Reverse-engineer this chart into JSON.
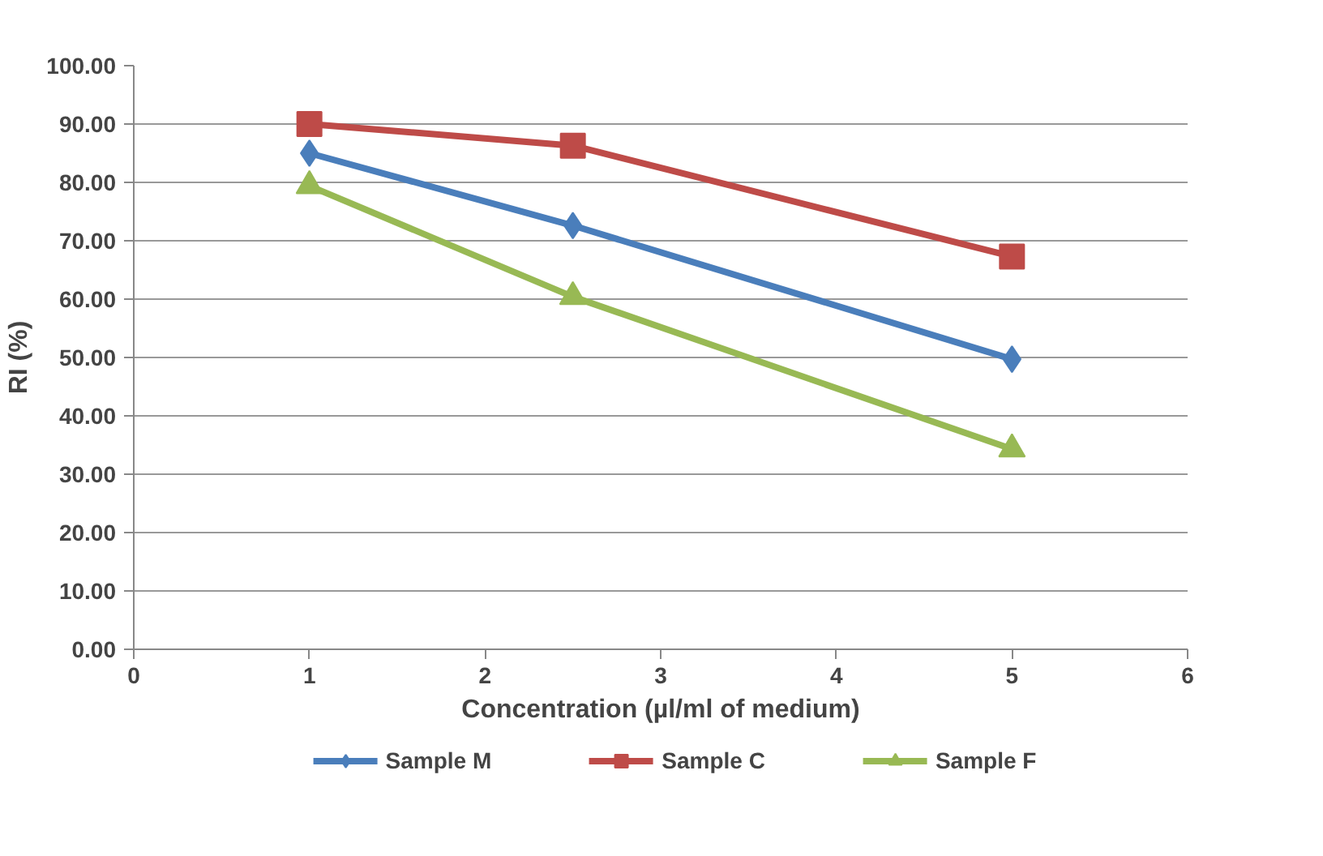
{
  "chart_data": {
    "type": "line",
    "xlabel": "Concentration (µl/ml of medium)",
    "ylabel": "RI (%)",
    "xlim": [
      0,
      6
    ],
    "xticks": [
      0,
      1,
      2,
      3,
      4,
      5,
      6
    ],
    "ylim": [
      0,
      100
    ],
    "yticks": [
      {
        "value": 0,
        "label": "0.00"
      },
      {
        "value": 10,
        "label": "10.00"
      },
      {
        "value": 20,
        "label": "20.00"
      },
      {
        "value": 30,
        "label": "30.00"
      },
      {
        "value": 40,
        "label": "40.00"
      },
      {
        "value": 50,
        "label": "50.00"
      },
      {
        "value": 60,
        "label": "60.00"
      },
      {
        "value": 70,
        "label": "70.00"
      },
      {
        "value": 80,
        "label": "80.00"
      },
      {
        "value": 90,
        "label": "90.00"
      },
      {
        "value": 100,
        "label": "100.00"
      }
    ],
    "grid": "y",
    "legend": "bottom",
    "line_style": "solid",
    "series": [
      {
        "name": "Sample M",
        "color": "#4a7ebb",
        "marker": "diamond",
        "x": [
          1,
          2.5,
          5
        ],
        "values": [
          85.0,
          72.6,
          49.7
        ]
      },
      {
        "name": "Sample C",
        "color": "#be4b48",
        "marker": "square",
        "x": [
          1,
          2.5,
          5
        ],
        "values": [
          90.0,
          86.3,
          67.3
        ]
      },
      {
        "name": "Sample F",
        "color": "#98b954",
        "marker": "triangle",
        "x": [
          1,
          2.5,
          5
        ],
        "values": [
          79.4,
          60.4,
          34.3
        ]
      }
    ]
  }
}
